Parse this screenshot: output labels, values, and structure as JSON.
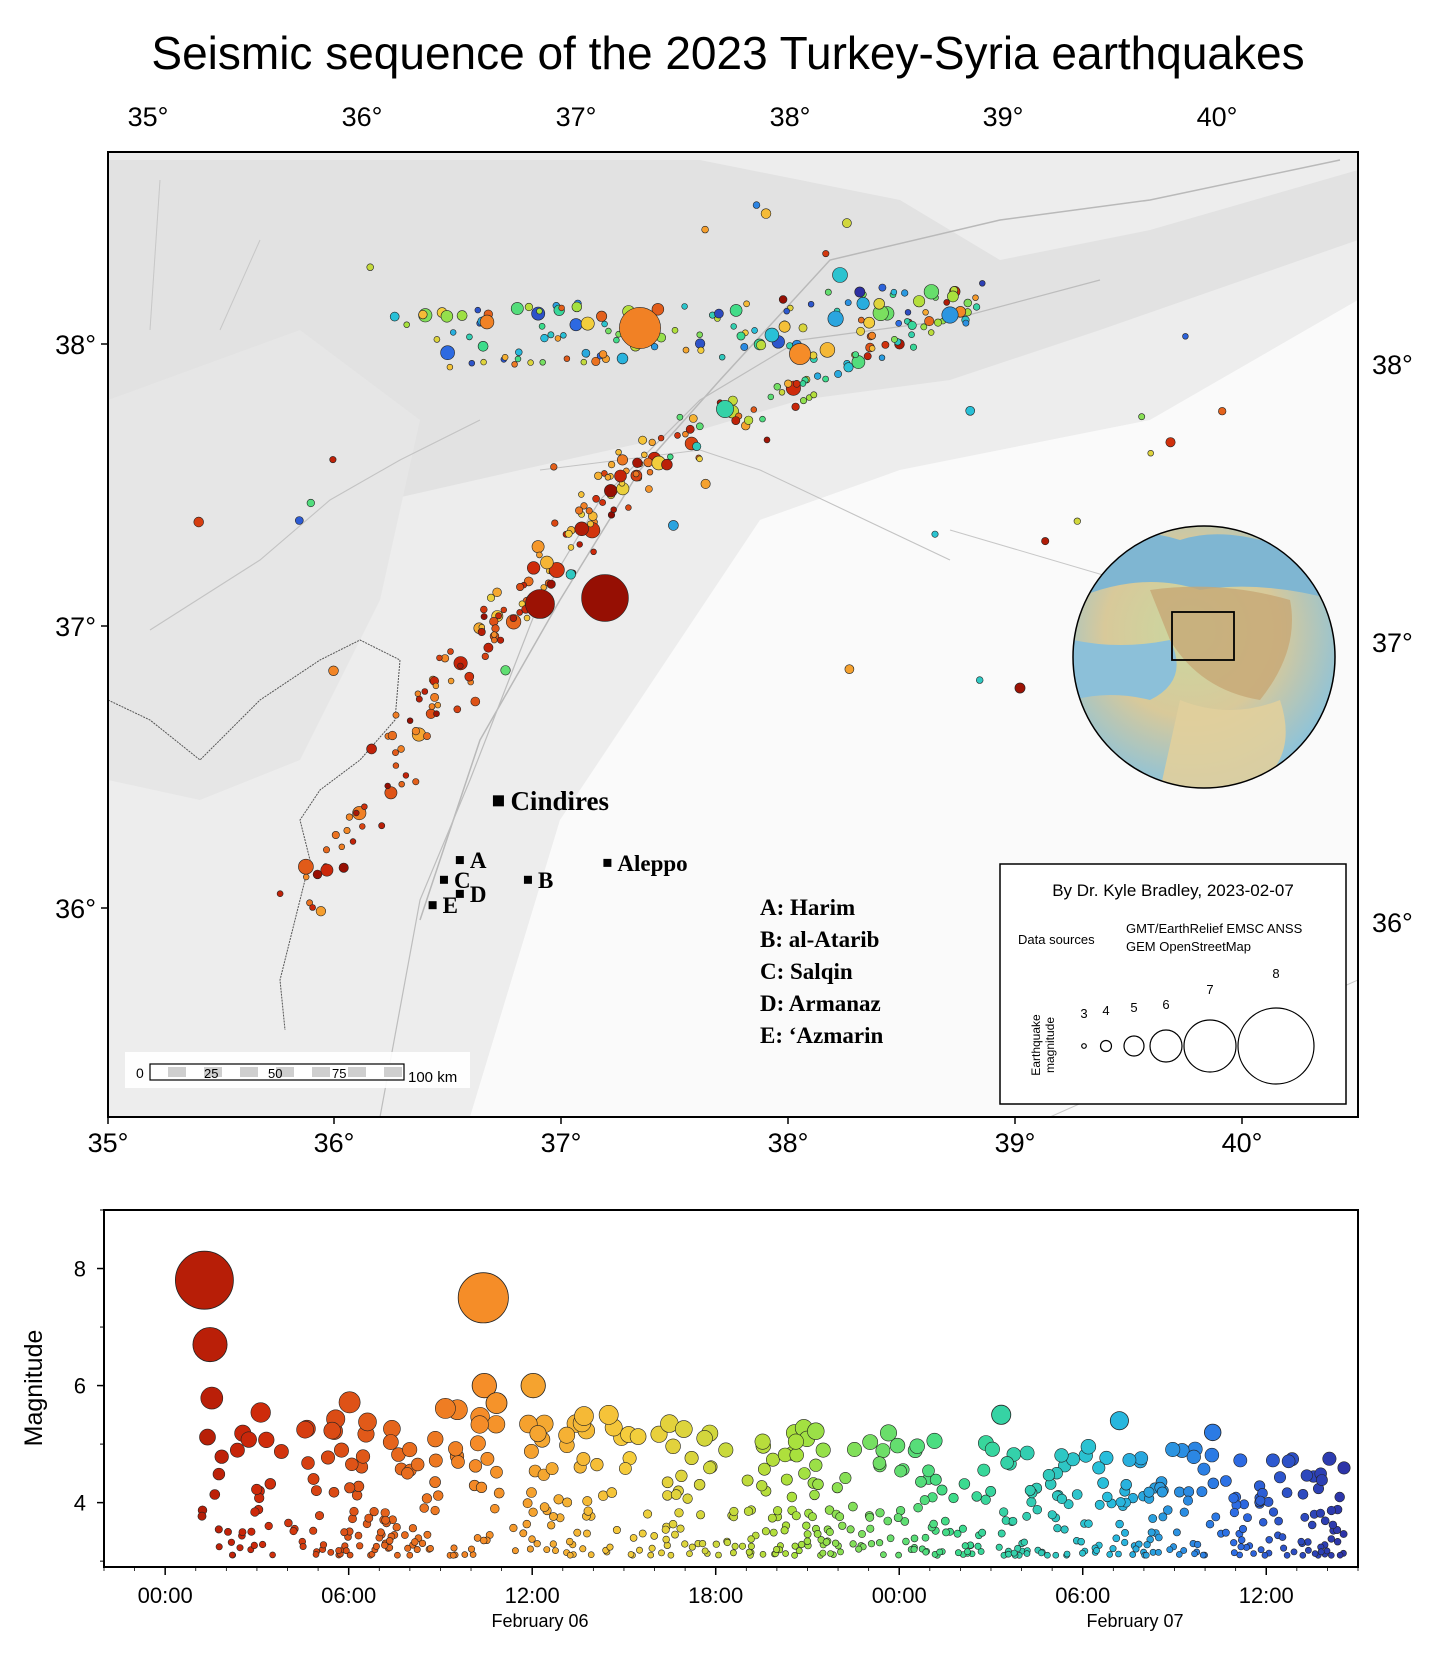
{
  "title": "Seismic sequence of the 2023 Turkey-Syria earthquakes",
  "map": {
    "top_lon_ticks": [
      "35°",
      "36°",
      "37°",
      "38°",
      "39°",
      "40°"
    ],
    "bottom_lon_ticks": [
      "35°",
      "36°",
      "37°",
      "38°",
      "39°",
      "40°"
    ],
    "left_lat_ticks": [
      "38°",
      "37°",
      "36°"
    ],
    "right_lat_ticks": [
      "38°",
      "37°",
      "36°"
    ],
    "places": [
      {
        "name": "Cindires",
        "lon": 36.72,
        "lat": 36.38,
        "big": true
      },
      {
        "name": "Aleppo",
        "lon": 37.2,
        "lat": 36.16,
        "big": false
      },
      {
        "name": "A",
        "lon": 36.55,
        "lat": 36.17,
        "big": false
      },
      {
        "name": "B",
        "lon": 36.85,
        "lat": 36.1,
        "big": false
      },
      {
        "name": "C",
        "lon": 36.48,
        "lat": 36.1,
        "big": false
      },
      {
        "name": "D",
        "lon": 36.55,
        "lat": 36.05,
        "big": false
      },
      {
        "name": "E",
        "lon": 36.43,
        "lat": 36.01,
        "big": false
      }
    ],
    "place_legend": [
      "A: Harim",
      "B: al-Atarib",
      "C: Salqin",
      "D: Armanaz",
      "E: ‘Azmarin"
    ],
    "scale_bar": {
      "ticks": [
        "0",
        "25",
        "50",
        "75"
      ],
      "end_label": "100 km"
    },
    "credit_box": {
      "author": "By Dr. Kyle Bradley, 2023-02-07",
      "sources_label": "Data sources",
      "sources_line1": "GMT/EarthRelief EMSC ANSS",
      "sources_line2": "GEM OpenStreetMap",
      "magnitude_axis_label_1": "Earthquake",
      "magnitude_axis_label_2": "magnitude",
      "magnitudes": [
        "3",
        "4",
        "5",
        "6",
        "7",
        "8"
      ]
    },
    "colors": {
      "early": "#8b0a02",
      "mid": "#f7a62b",
      "late": "#2e3aa0",
      "relief_light": "#f4f4f4"
    }
  },
  "timeline": {
    "ylabel": "Magnitude",
    "y_ticks": [
      "4",
      "6",
      "8"
    ],
    "x_ticks": [
      "00:00",
      "06:00",
      "12:00",
      "18:00",
      "00:00",
      "06:00",
      "12:00"
    ],
    "date_labels": [
      "February 06",
      "February 07"
    ]
  },
  "chart_data": {
    "type": "scatter",
    "title": "",
    "xlabel": "",
    "ylabel": "Magnitude",
    "ylim": [
      2.9,
      9.0
    ],
    "x_range": [
      "2023-02-05 22:00",
      "2023-02-07 15:00"
    ],
    "highlighted_events": [
      {
        "time": "2023-02-06 01:17",
        "magnitude": 7.8
      },
      {
        "time": "2023-02-06 01:28",
        "magnitude": 6.7
      },
      {
        "time": "2023-02-06 10:24",
        "magnitude": 7.5
      },
      {
        "time": "2023-02-06 10:26",
        "magnitude": 6.0
      },
      {
        "time": "2023-02-06 12:02",
        "magnitude": 6.0
      },
      {
        "time": "2023-02-06 10:50",
        "magnitude": 5.7
      },
      {
        "time": "2023-02-07 03:20",
        "magnitude": 5.5
      },
      {
        "time": "2023-02-07 07:12",
        "magnitude": 5.4
      },
      {
        "time": "2023-02-07 10:15",
        "magnitude": 5.2
      }
    ]
  }
}
